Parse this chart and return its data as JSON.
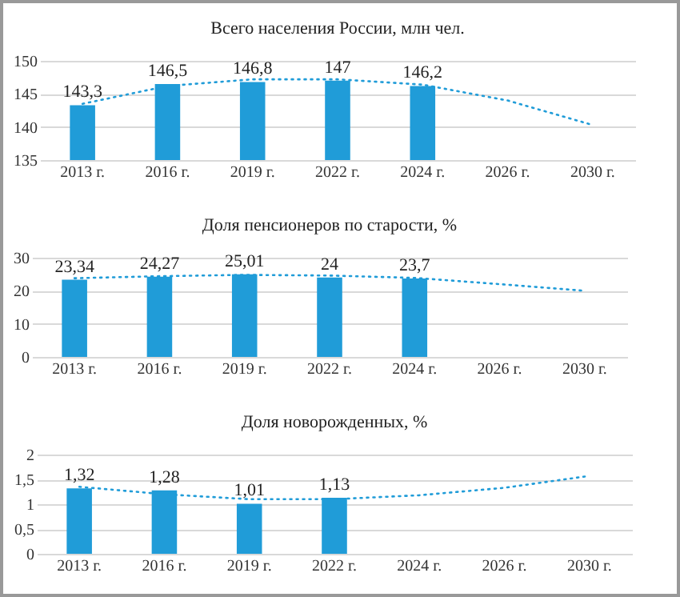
{
  "chart_data": [
    {
      "type": "bar",
      "title": "Всего населения России, млн чел.",
      "categories": [
        "2013 г.",
        "2016 г.",
        "2019 г.",
        "2022 г.",
        "2024 г.",
        "2026 г.",
        "2030 г."
      ],
      "ylim": [
        135,
        150
      ],
      "yticks": [
        135,
        140,
        145,
        150
      ],
      "grid": "y",
      "series": [
        {
          "color": "#209cd8",
          "values": [
            143.3,
            146.5,
            146.8,
            147,
            146.2,
            null,
            null
          ],
          "value_labels": [
            "143,3",
            "146,5",
            "146,8",
            "147",
            "146,2",
            null,
            null
          ]
        },
        {
          "type": "line",
          "color": "#209cd8",
          "line_style": "dotted",
          "values": [
            143.5,
            146.2,
            147.2,
            147.2,
            146.4,
            144,
            140.3
          ]
        }
      ]
    },
    {
      "type": "bar",
      "title": "Доля пенсионеров по старости, %",
      "categories": [
        "2013 г.",
        "2016 г.",
        "2019 г.",
        "2022 г.",
        "2024 г.",
        "2026 г.",
        "2030 г."
      ],
      "ylim": [
        0,
        30
      ],
      "yticks": [
        0,
        10,
        20,
        30
      ],
      "grid": "y",
      "series": [
        {
          "color": "#209cd8",
          "values": [
            23.34,
            24.27,
            25.01,
            24,
            23.7,
            null,
            null
          ],
          "value_labels": [
            "23,34",
            "24,27",
            "25,01",
            "24",
            "23,7",
            null,
            null
          ]
        },
        {
          "type": "line",
          "color": "#209cd8",
          "line_style": "dotted",
          "values": [
            23.8,
            24.4,
            24.8,
            24.6,
            23.9,
            22,
            20
          ]
        }
      ]
    },
    {
      "type": "bar",
      "title": "Доля новорожденных, %",
      "categories": [
        "2013 г.",
        "2016 г.",
        "2019 г.",
        "2022 г.",
        "2024 г.",
        "2026 г.",
        "2030 г."
      ],
      "ylim": [
        0,
        2
      ],
      "yticks": [
        0,
        {
          "value": 0.5,
          "label": "0,5"
        },
        1,
        {
          "value": 1.5,
          "label": "1,5"
        },
        2
      ],
      "grid": "y",
      "series": [
        {
          "color": "#209cd8",
          "values": [
            1.32,
            1.28,
            1.01,
            1.13,
            null,
            null,
            null
          ],
          "value_labels": [
            "1,32",
            "1,28",
            "1,01",
            "1,13",
            null,
            null,
            null
          ]
        },
        {
          "type": "line",
          "color": "#209cd8",
          "line_style": "dotted",
          "values": [
            1.35,
            1.2,
            1.1,
            1.1,
            1.18,
            1.33,
            1.57
          ]
        }
      ]
    }
  ]
}
